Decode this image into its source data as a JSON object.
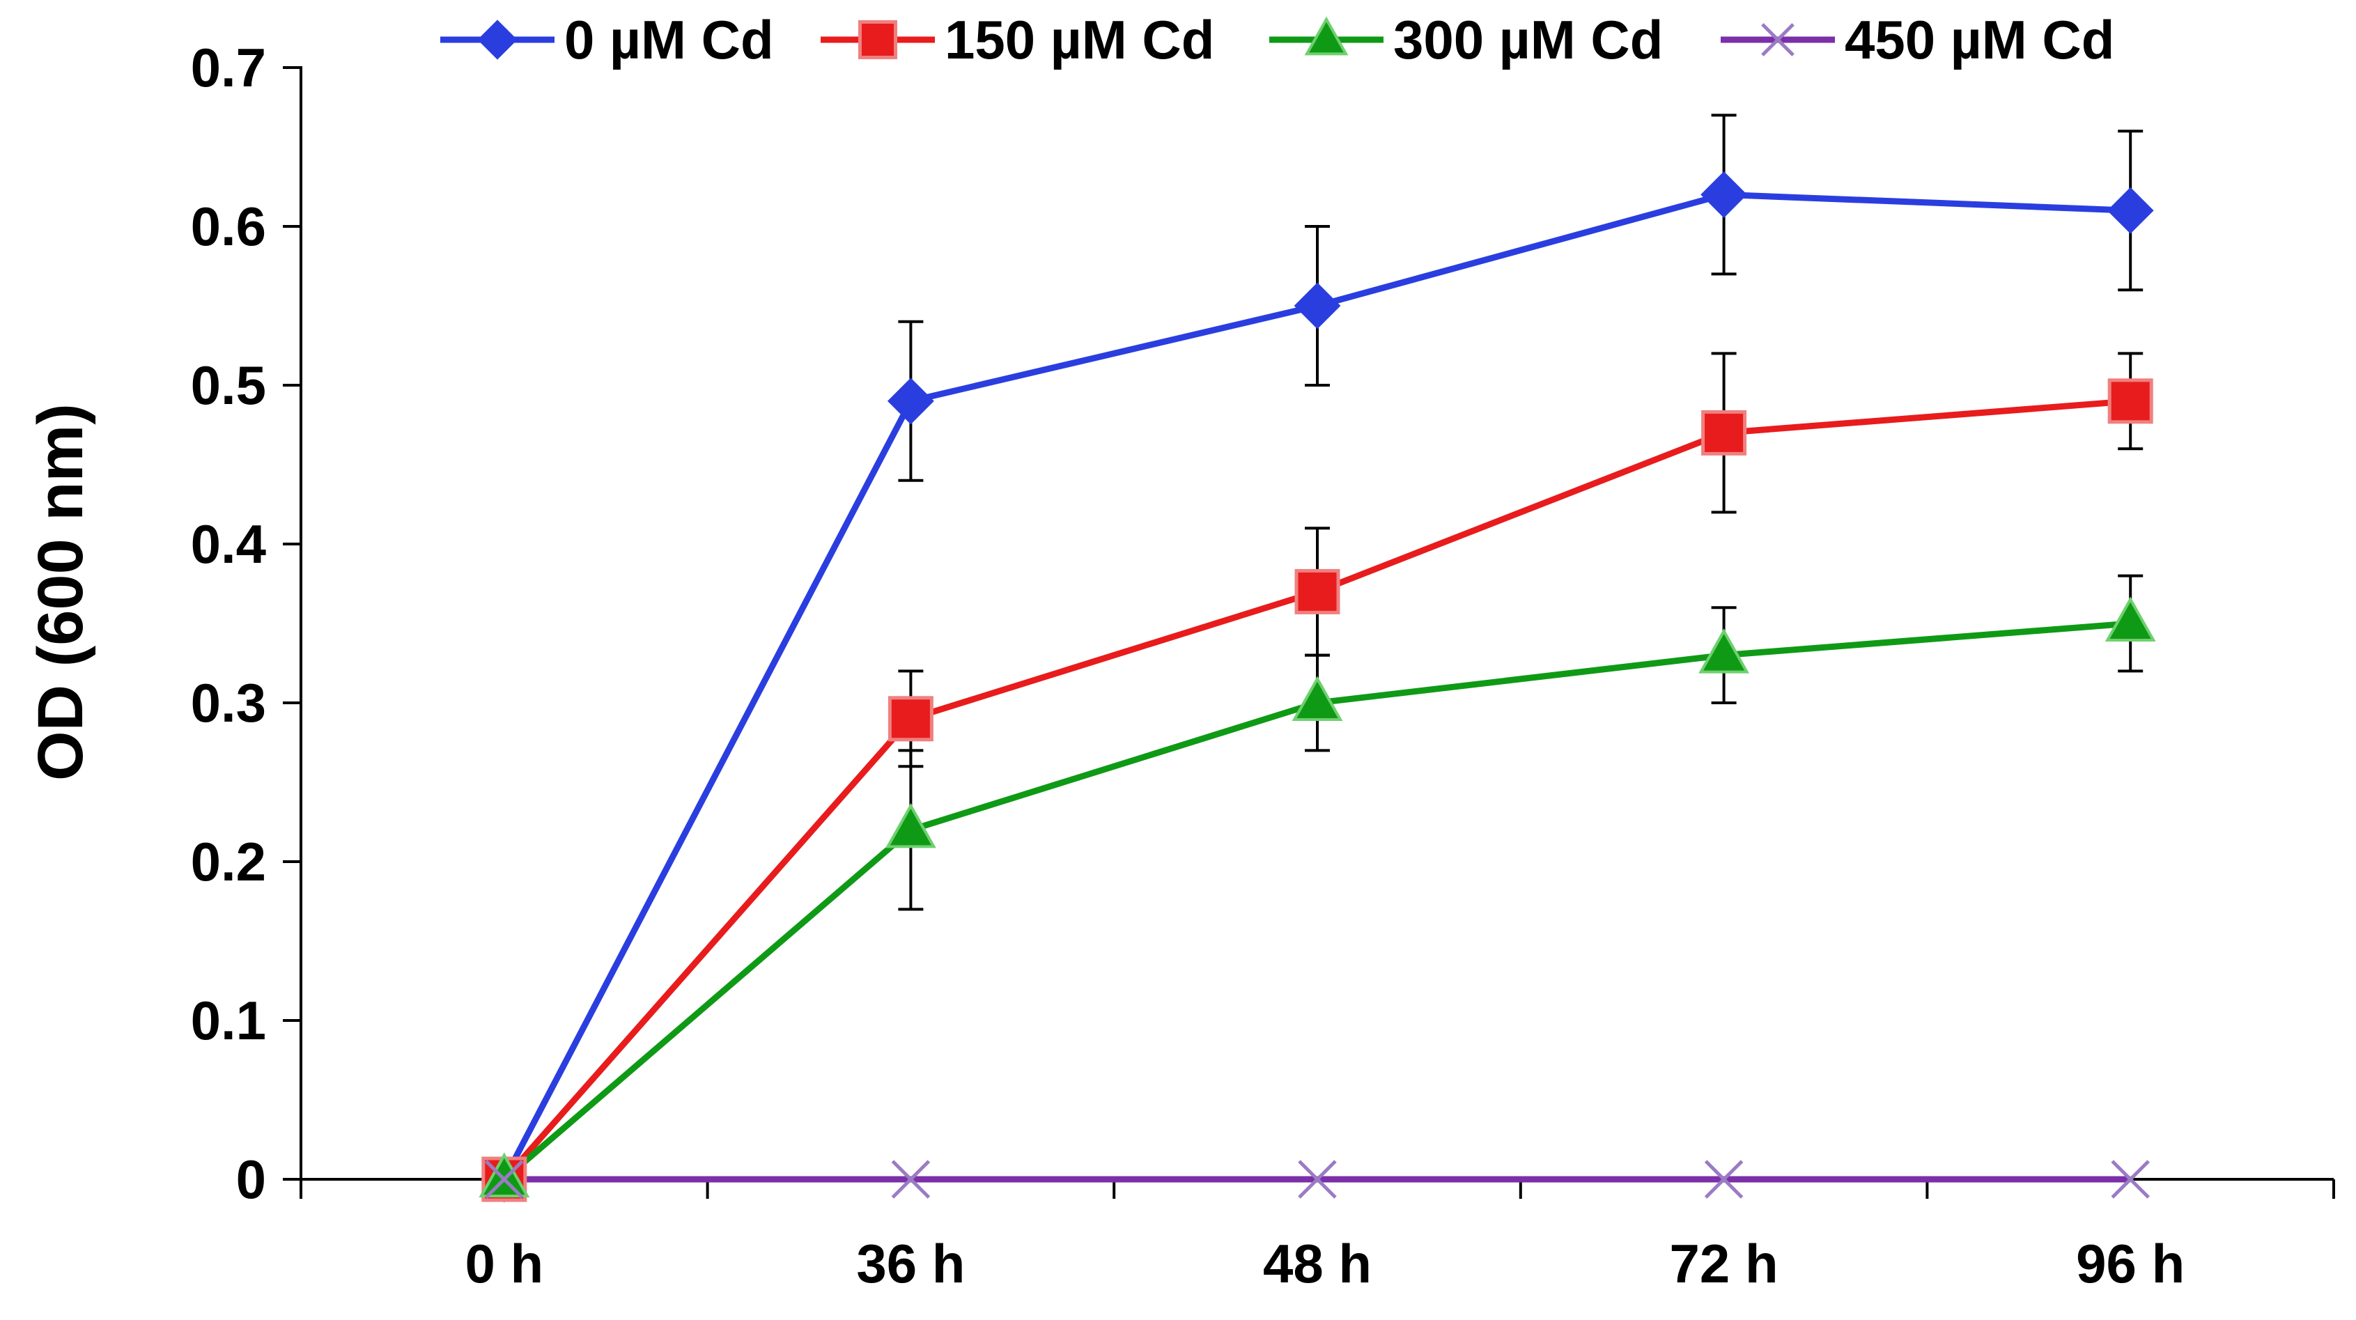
{
  "chart_data": {
    "type": "line",
    "title": "",
    "xlabel": "",
    "ylabel": "OD (600 nm)",
    "categories": [
      "0 h",
      "36 h",
      "48 h",
      "72 h",
      "96 h"
    ],
    "ylim": [
      0,
      0.7
    ],
    "yticks": [
      0,
      0.1,
      0.2,
      0.3,
      0.4,
      0.5,
      0.6,
      0.7
    ],
    "ytick_labels": [
      "0",
      "0.1",
      "0.2",
      "0.3",
      "0.4",
      "0.5",
      "0.6",
      "0.7"
    ],
    "grid": false,
    "legend_position": "top",
    "series": [
      {
        "name": "0 µM Cd",
        "color": "#2a3ee0",
        "marker": "diamond",
        "values": [
          0,
          0.49,
          0.55,
          0.62,
          0.61
        ],
        "errors": [
          0,
          0.05,
          0.05,
          0.05,
          0.05
        ]
      },
      {
        "name": "150 µM Cd",
        "color": "#e81c1c",
        "marker": "square",
        "values": [
          0,
          0.29,
          0.37,
          0.47,
          0.49
        ],
        "errors": [
          0,
          0.03,
          0.04,
          0.05,
          0.03
        ]
      },
      {
        "name": "300 µM Cd",
        "color": "#0f9a16",
        "marker": "triangle",
        "values": [
          0,
          0.22,
          0.3,
          0.33,
          0.35
        ],
        "errors": [
          0,
          0.05,
          0.03,
          0.03,
          0.03
        ]
      },
      {
        "name": "450 µM Cd",
        "color": "#7b2fa8",
        "marker": "x",
        "values": [
          0,
          0,
          0,
          0,
          0
        ],
        "errors": [
          0,
          0,
          0,
          0,
          0
        ]
      }
    ]
  }
}
